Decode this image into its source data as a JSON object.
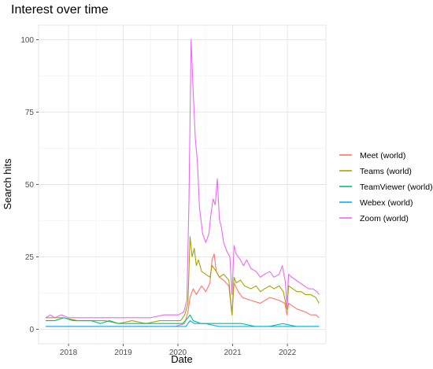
{
  "chart_data": {
    "type": "line",
    "title": "Interest over time",
    "xlabel": "Date",
    "ylabel": "Search hits",
    "xlim": [
      "2017-06-15",
      "2022-09-15"
    ],
    "ylim": [
      -5,
      105
    ],
    "x_ticks": [
      {
        "date": "2018-01-01",
        "label": "2018"
      },
      {
        "date": "2019-01-01",
        "label": "2019"
      },
      {
        "date": "2020-01-01",
        "label": "2020"
      },
      {
        "date": "2021-01-01",
        "label": "2021"
      },
      {
        "date": "2022-01-01",
        "label": "2022"
      }
    ],
    "y_ticks": [
      0,
      25,
      50,
      75,
      100
    ],
    "grid": true,
    "legend_position": "right",
    "series": [
      {
        "name": "Meet (world)",
        "color": "#F8766D",
        "points": [
          [
            "2017-08-01",
            1
          ],
          [
            "2019-12-15",
            1
          ],
          [
            "2020-02-15",
            2
          ],
          [
            "2020-03-08",
            6
          ],
          [
            "2020-03-22",
            11
          ],
          [
            "2020-04-12",
            14
          ],
          [
            "2020-05-03",
            12
          ],
          [
            "2020-06-07",
            15
          ],
          [
            "2020-07-05",
            13
          ],
          [
            "2020-08-02",
            16
          ],
          [
            "2020-08-16",
            24
          ],
          [
            "2020-08-30",
            26
          ],
          [
            "2020-09-13",
            20
          ],
          [
            "2020-10-04",
            18
          ],
          [
            "2020-11-01",
            17
          ],
          [
            "2020-12-06",
            15
          ],
          [
            "2020-12-27",
            5
          ],
          [
            "2021-01-10",
            16
          ],
          [
            "2021-02-07",
            13
          ],
          [
            "2021-03-07",
            11
          ],
          [
            "2021-05-02",
            10
          ],
          [
            "2021-07-04",
            9
          ],
          [
            "2021-09-05",
            11
          ],
          [
            "2021-11-07",
            10
          ],
          [
            "2021-12-15",
            9
          ],
          [
            "2021-12-29",
            5
          ],
          [
            "2022-01-09",
            9
          ],
          [
            "2022-02-06",
            8
          ],
          [
            "2022-03-06",
            7
          ],
          [
            "2022-05-01",
            6
          ],
          [
            "2022-06-05",
            5
          ],
          [
            "2022-07-10",
            5
          ],
          [
            "2022-07-31",
            4
          ]
        ]
      },
      {
        "name": "Teams (world)",
        "color": "#A3A500",
        "points": [
          [
            "2017-08-01",
            4
          ],
          [
            "2017-12-01",
            4
          ],
          [
            "2018-03-01",
            3
          ],
          [
            "2018-06-01",
            3
          ],
          [
            "2018-09-01",
            3
          ],
          [
            "2018-12-01",
            2
          ],
          [
            "2019-03-01",
            3
          ],
          [
            "2019-06-01",
            2
          ],
          [
            "2019-09-01",
            3
          ],
          [
            "2019-12-01",
            3
          ],
          [
            "2020-01-19",
            3
          ],
          [
            "2020-02-16",
            5
          ],
          [
            "2020-03-08",
            9
          ],
          [
            "2020-03-22",
            32
          ],
          [
            "2020-04-05",
            25
          ],
          [
            "2020-04-19",
            28
          ],
          [
            "2020-05-03",
            22
          ],
          [
            "2020-05-17",
            24
          ],
          [
            "2020-06-07",
            20
          ],
          [
            "2020-07-05",
            19
          ],
          [
            "2020-08-02",
            18
          ],
          [
            "2020-08-16",
            22
          ],
          [
            "2020-09-13",
            20
          ],
          [
            "2020-10-04",
            18
          ],
          [
            "2020-11-01",
            19
          ],
          [
            "2020-12-06",
            17
          ],
          [
            "2020-12-27",
            5
          ],
          [
            "2021-01-10",
            18
          ],
          [
            "2021-01-24",
            16
          ],
          [
            "2021-02-21",
            17
          ],
          [
            "2021-03-21",
            15
          ],
          [
            "2021-05-02",
            14
          ],
          [
            "2021-06-06",
            15
          ],
          [
            "2021-07-04",
            13
          ],
          [
            "2021-08-01",
            14
          ],
          [
            "2021-09-05",
            15
          ],
          [
            "2021-10-03",
            14
          ],
          [
            "2021-11-07",
            15
          ],
          [
            "2021-12-05",
            13
          ],
          [
            "2021-12-29",
            7
          ],
          [
            "2022-01-09",
            15
          ],
          [
            "2022-02-06",
            14
          ],
          [
            "2022-03-06",
            13
          ],
          [
            "2022-04-03",
            13
          ],
          [
            "2022-05-01",
            12
          ],
          [
            "2022-06-05",
            12
          ],
          [
            "2022-07-10",
            11
          ],
          [
            "2022-07-31",
            9
          ]
        ]
      },
      {
        "name": "TeamViewer (world)",
        "color": "#00BF7D",
        "points": [
          [
            "2017-08-01",
            3
          ],
          [
            "2017-10-01",
            3
          ],
          [
            "2017-12-01",
            4
          ],
          [
            "2018-02-01",
            3
          ],
          [
            "2018-04-01",
            3
          ],
          [
            "2018-06-01",
            3
          ],
          [
            "2018-08-01",
            2
          ],
          [
            "2018-10-01",
            3
          ],
          [
            "2018-12-01",
            2
          ],
          [
            "2019-02-01",
            2
          ],
          [
            "2019-04-01",
            2
          ],
          [
            "2019-06-01",
            2
          ],
          [
            "2019-08-01",
            2
          ],
          [
            "2019-10-01",
            2
          ],
          [
            "2019-12-01",
            2
          ],
          [
            "2020-02-01",
            2
          ],
          [
            "2020-03-08",
            4
          ],
          [
            "2020-03-22",
            5
          ],
          [
            "2020-04-12",
            3
          ],
          [
            "2020-06-01",
            2
          ],
          [
            "2020-09-01",
            2
          ],
          [
            "2020-12-01",
            2
          ],
          [
            "2021-03-01",
            2
          ],
          [
            "2021-06-01",
            1
          ],
          [
            "2021-09-01",
            1
          ],
          [
            "2021-12-01",
            2
          ],
          [
            "2022-03-01",
            1
          ],
          [
            "2022-06-01",
            1
          ],
          [
            "2022-07-31",
            1
          ]
        ]
      },
      {
        "name": "Webex (world)",
        "color": "#00B0F6",
        "points": [
          [
            "2017-08-01",
            1
          ],
          [
            "2019-12-15",
            1
          ],
          [
            "2020-02-23",
            1
          ],
          [
            "2020-03-08",
            2
          ],
          [
            "2020-03-22",
            3
          ],
          [
            "2020-04-19",
            2
          ],
          [
            "2020-07-01",
            2
          ],
          [
            "2020-10-01",
            1
          ],
          [
            "2021-01-01",
            1
          ],
          [
            "2022-07-31",
            1
          ]
        ]
      },
      {
        "name": "Zoom (world)",
        "color": "#E76BF3",
        "points": [
          [
            "2017-08-01",
            4
          ],
          [
            "2017-09-01",
            5
          ],
          [
            "2017-10-01",
            4
          ],
          [
            "2017-11-15",
            5
          ],
          [
            "2018-01-01",
            4
          ],
          [
            "2018-04-01",
            4
          ],
          [
            "2018-07-01",
            4
          ],
          [
            "2018-10-01",
            4
          ],
          [
            "2019-01-01",
            4
          ],
          [
            "2019-04-01",
            4
          ],
          [
            "2019-07-01",
            4
          ],
          [
            "2019-10-01",
            5
          ],
          [
            "2020-01-05",
            5
          ],
          [
            "2020-02-09",
            6
          ],
          [
            "2020-03-01",
            10
          ],
          [
            "2020-03-15",
            45
          ],
          [
            "2020-03-29",
            100
          ],
          [
            "2020-04-12",
            82
          ],
          [
            "2020-04-26",
            66
          ],
          [
            "2020-05-10",
            58
          ],
          [
            "2020-05-24",
            42
          ],
          [
            "2020-06-14",
            33
          ],
          [
            "2020-07-05",
            30
          ],
          [
            "2020-07-26",
            33
          ],
          [
            "2020-08-09",
            40
          ],
          [
            "2020-08-23",
            45
          ],
          [
            "2020-09-06",
            43
          ],
          [
            "2020-09-20",
            52
          ],
          [
            "2020-10-04",
            38
          ],
          [
            "2020-10-18",
            35
          ],
          [
            "2020-11-01",
            30
          ],
          [
            "2020-11-22",
            27
          ],
          [
            "2020-12-13",
            25
          ],
          [
            "2020-12-27",
            12
          ],
          [
            "2021-01-10",
            29
          ],
          [
            "2021-01-24",
            26
          ],
          [
            "2021-02-21",
            24
          ],
          [
            "2021-03-14",
            22
          ],
          [
            "2021-04-04",
            24
          ],
          [
            "2021-05-02",
            21
          ],
          [
            "2021-06-06",
            20
          ],
          [
            "2021-07-04",
            18
          ],
          [
            "2021-08-01",
            19
          ],
          [
            "2021-09-05",
            20
          ],
          [
            "2021-10-03",
            18
          ],
          [
            "2021-11-07",
            19
          ],
          [
            "2021-11-28",
            22
          ],
          [
            "2021-12-19",
            16
          ],
          [
            "2021-12-29",
            8
          ],
          [
            "2022-01-09",
            19
          ],
          [
            "2022-01-30",
            18
          ],
          [
            "2022-02-27",
            17
          ],
          [
            "2022-03-27",
            16
          ],
          [
            "2022-04-24",
            15
          ],
          [
            "2022-05-22",
            14
          ],
          [
            "2022-06-19",
            14
          ],
          [
            "2022-07-17",
            13
          ],
          [
            "2022-07-31",
            12
          ]
        ]
      }
    ]
  }
}
